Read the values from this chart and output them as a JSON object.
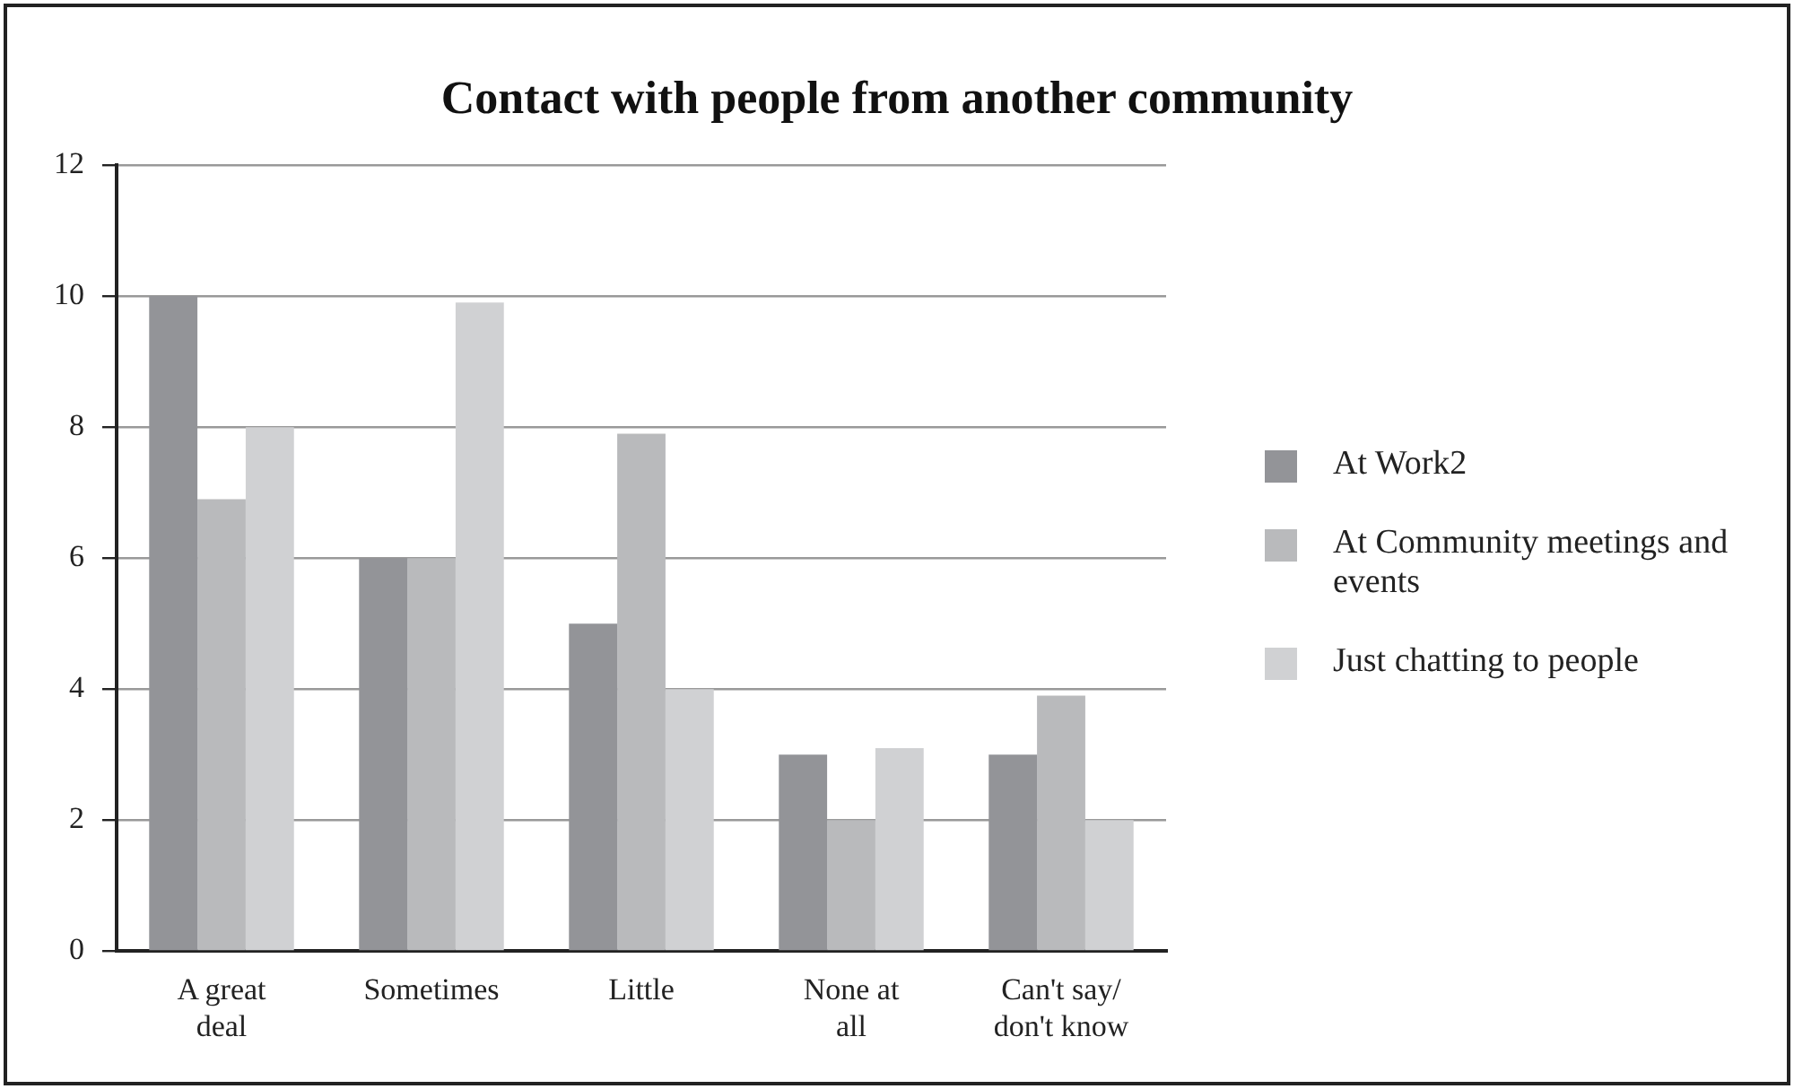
{
  "chart_data": {
    "type": "bar",
    "title": "Contact with people from another community",
    "categories": [
      "A great deal",
      "Sometimes",
      "Little",
      "None at all",
      "Can't say/ don't know"
    ],
    "series": [
      {
        "name": "At Work2",
        "color": "#939498",
        "values": [
          10,
          6,
          5,
          3,
          3
        ]
      },
      {
        "name": "At Community meetings and events",
        "color": "#b9babc",
        "values": [
          6.9,
          6,
          7.9,
          2,
          3.9
        ]
      },
      {
        "name": "Just chatting to people",
        "color": "#d0d1d3",
        "values": [
          8,
          9.9,
          4,
          3.1,
          2
        ]
      }
    ],
    "ylim": [
      0,
      12
    ],
    "yticks": [
      0,
      2,
      4,
      6,
      8,
      10,
      12
    ],
    "grid": "y",
    "legend": "right"
  }
}
